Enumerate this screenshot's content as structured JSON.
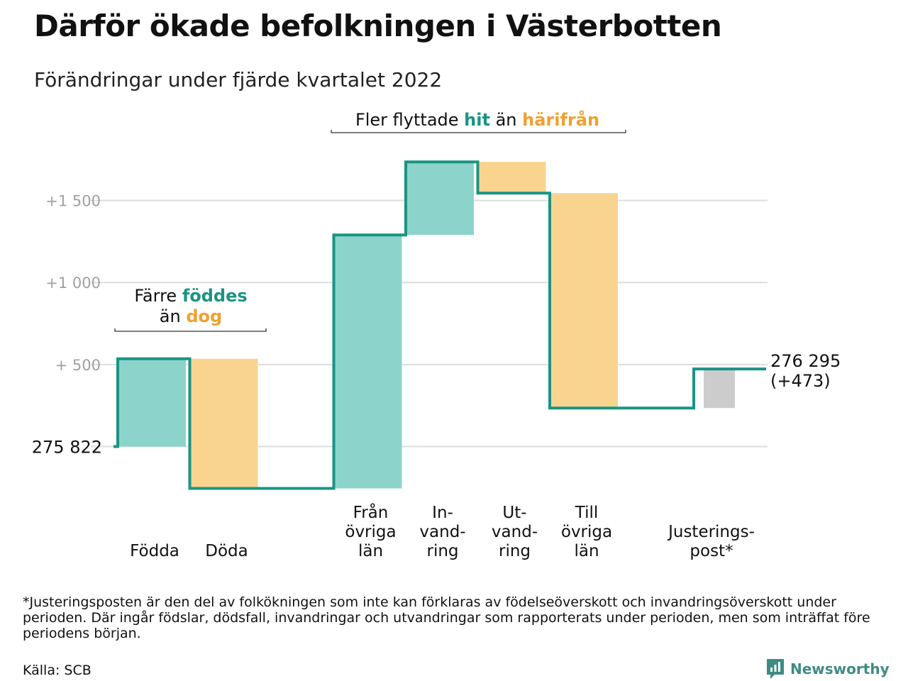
{
  "header": {
    "title": "Därför ökade befolkningen i Västerbotten",
    "subtitle": "Förändringar under fjärde kvartalet 2022"
  },
  "colors": {
    "inflow": "#8cd4cb",
    "outflow": "#f9d48f",
    "adjustment": "#cccccc",
    "line": "#1a9483",
    "accent_green": "#1a9483",
    "accent_orange": "#f0a030",
    "grid": "#dddddd",
    "tick_text": "#a0a0a0"
  },
  "chart_data": {
    "type": "waterfall",
    "start_value": 275822,
    "start_label": "275 822",
    "end_label": "276 295",
    "end_change_label": "(+473)",
    "ylim": [
      -270,
      1870
    ],
    "yticks": [
      {
        "value": 500,
        "label": "+ 500"
      },
      {
        "value": 1000,
        "label": "+1 000"
      },
      {
        "value": 1500,
        "label": "+1 500"
      }
    ],
    "baseline_gridline": 0,
    "steps": [
      {
        "label": [
          "Födda"
        ],
        "change": 535,
        "kind": "inflow"
      },
      {
        "label": [
          "Döda"
        ],
        "change": -790,
        "kind": "outflow"
      },
      {
        "label": [],
        "change": 0,
        "kind": "gap"
      },
      {
        "label": [
          "Från",
          "övriga",
          "län"
        ],
        "change": 1545,
        "kind": "inflow"
      },
      {
        "label": [
          "In-",
          "vand-",
          "ring"
        ],
        "change": 445,
        "kind": "inflow"
      },
      {
        "label": [
          "Ut-",
          "vand-",
          "ring"
        ],
        "change": -190,
        "kind": "outflow"
      },
      {
        "label": [
          "Till",
          "övriga",
          "län"
        ],
        "change": -1310,
        "kind": "outflow"
      },
      {
        "label": [],
        "change": 0,
        "kind": "gap"
      },
      {
        "label": [
          "Justerings-",
          "post*"
        ],
        "change": 238,
        "kind": "adjustment"
      }
    ],
    "annotations": [
      {
        "group": "births",
        "parts": [
          {
            "text": "Färre ",
            "color": "normal"
          },
          {
            "text": "föddes",
            "color": "green"
          },
          {
            "text": "än ",
            "color": "normal",
            "newline": true
          },
          {
            "text": "dog",
            "color": "orange"
          }
        ]
      },
      {
        "group": "migration",
        "parts": [
          {
            "text": "Fler flyttade ",
            "color": "normal"
          },
          {
            "text": "hit",
            "color": "green"
          },
          {
            "text": " än ",
            "color": "normal"
          },
          {
            "text": "härifrån",
            "color": "orange"
          }
        ]
      }
    ]
  },
  "footer": {
    "footnote": "*Justeringsposten är den del av folkökningen som inte kan förklaras av födelseöverskott och invandringsöverskott under perioden. Där ingår födslar, dödsfall, invandringar och utvandringar som rapporterats under perioden, men som inträffat före periodens början.",
    "source": "Källa: SCB",
    "brand": "Newsworthy",
    "brand_icon": "newsworthy-logo-icon"
  }
}
